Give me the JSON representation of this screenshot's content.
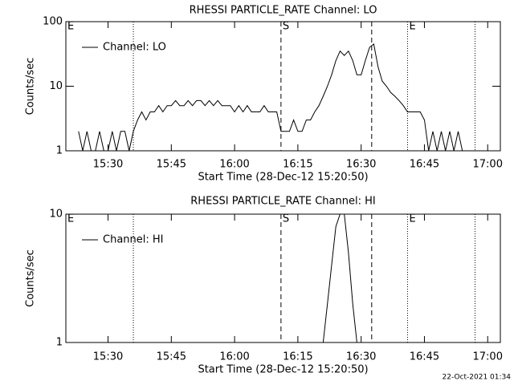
{
  "chart_data": [
    {
      "type": "line",
      "title": "RHESSI PARTICLE_RATE Channel: LO",
      "xlabel": "Start Time (28-Dec-12 15:20:50)",
      "ylabel": "Counts/sec",
      "x": [
        "15:23",
        "15:24",
        "15:25",
        "15:26",
        "15:27",
        "15:28",
        "15:29",
        "15:30",
        "15:31",
        "15:32",
        "15:33",
        "15:34",
        "15:35",
        "15:36",
        "15:37",
        "15:38",
        "15:39",
        "15:40",
        "15:41",
        "15:42",
        "15:43",
        "15:44",
        "15:45",
        "15:46",
        "15:47",
        "15:48",
        "15:49",
        "15:50",
        "15:51",
        "15:52",
        "15:53",
        "15:54",
        "15:55",
        "15:56",
        "15:57",
        "15:58",
        "15:59",
        "16:00",
        "16:01",
        "16:02",
        "16:03",
        "16:04",
        "16:05",
        "16:06",
        "16:07",
        "16:08",
        "16:09",
        "16:10",
        "16:11",
        "16:12",
        "16:13",
        "16:14",
        "16:15",
        "16:16",
        "16:17",
        "16:18",
        "16:19",
        "16:20",
        "16:21",
        "16:22",
        "16:23",
        "16:24",
        "16:25",
        "16:26",
        "16:27",
        "16:28",
        "16:29",
        "16:30",
        "16:31",
        "16:32",
        "16:33",
        "16:34",
        "16:35",
        "16:36",
        "16:37",
        "16:38",
        "16:39",
        "16:40",
        "16:41",
        "16:42",
        "16:43",
        "16:44",
        "16:45",
        "16:46",
        "16:47",
        "16:48",
        "16:49",
        "16:50",
        "16:51",
        "16:52",
        "16:53",
        "16:54",
        "16:55"
      ],
      "series": [
        {
          "name": "Channel: LO",
          "color": "#000000",
          "values": [
            2,
            1,
            2,
            1,
            1,
            2,
            1,
            1,
            2,
            1,
            2,
            2,
            1,
            2,
            3,
            4,
            3,
            4,
            4,
            5,
            4,
            5,
            5,
            6,
            5,
            5,
            6,
            5,
            6,
            6,
            5,
            6,
            5,
            6,
            5,
            5,
            5,
            4,
            5,
            4,
            5,
            4,
            4,
            4,
            5,
            4,
            4,
            4,
            2,
            2,
            2,
            3,
            2,
            2,
            3,
            3,
            4,
            5,
            7,
            10,
            15,
            25,
            35,
            30,
            35,
            25,
            15,
            15,
            25,
            40,
            45,
            20,
            12,
            10,
            8,
            7,
            6,
            5,
            4,
            4,
            4,
            4,
            3,
            1,
            2,
            1,
            2,
            1,
            2,
            1,
            2,
            1,
            1
          ]
        }
      ],
      "xlim": [
        "15:20",
        "17:03"
      ],
      "xticks": [
        "15:30",
        "15:45",
        "16:00",
        "16:15",
        "16:30",
        "16:45",
        "17:00"
      ],
      "ylim": [
        1,
        100
      ],
      "yticks": [
        1,
        10,
        100
      ],
      "log_y": true,
      "legend": "upper left",
      "markers": [
        {
          "x": "15:36",
          "style": "dotted"
        },
        {
          "x": "16:11",
          "style": "dashed"
        },
        {
          "x": "16:32:30",
          "style": "dashed"
        },
        {
          "x": "16:41",
          "style": "dotted"
        },
        {
          "x": "16:57",
          "style": "dotted"
        }
      ],
      "annotations": [
        {
          "text": "E",
          "x": "15:20"
        },
        {
          "text": "S",
          "x": "16:11"
        },
        {
          "text": "E",
          "x": "16:41"
        }
      ]
    },
    {
      "type": "line",
      "title": "RHESSI PARTICLE_RATE Channel: HI",
      "xlabel": "Start Time (28-Dec-12 15:20:50)",
      "ylabel": "Counts/sec",
      "x": [
        "16:21",
        "16:22",
        "16:23",
        "16:24",
        "16:25",
        "16:26",
        "16:27",
        "16:28",
        "16:29"
      ],
      "series": [
        {
          "name": "Channel: HI",
          "color": "#000000",
          "values": [
            1,
            2,
            4,
            8,
            10,
            10,
            5,
            2,
            1
          ]
        }
      ],
      "xlim": [
        "15:20",
        "17:03"
      ],
      "xticks": [
        "15:30",
        "15:45",
        "16:00",
        "16:15",
        "16:30",
        "16:45",
        "17:00"
      ],
      "ylim": [
        1,
        10
      ],
      "yticks": [
        1,
        10
      ],
      "log_y": true,
      "legend": "upper left",
      "markers": [
        {
          "x": "15:36",
          "style": "dotted"
        },
        {
          "x": "16:11",
          "style": "dashed"
        },
        {
          "x": "16:32:30",
          "style": "dashed"
        },
        {
          "x": "16:41",
          "style": "dotted"
        },
        {
          "x": "16:57",
          "style": "dotted"
        }
      ],
      "annotations": [
        {
          "text": "E",
          "x": "15:20"
        },
        {
          "text": "S",
          "x": "16:11"
        },
        {
          "text": "E",
          "x": "16:41"
        }
      ]
    }
  ],
  "footer": "22-Oct-2021 01:34"
}
